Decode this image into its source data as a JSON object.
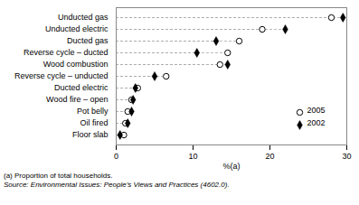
{
  "chart_data": {
    "type": "dot",
    "orientation": "horizontal",
    "categories": [
      "Floor slab",
      "Oil fired",
      "Pot belly",
      "Wood fire – open",
      "Ducted electric",
      "Reverse cycle – unducted",
      "Wood combustion",
      "Reverse cycle – ducted",
      "Ducted gas",
      "Unducted electric",
      "Unducted gas"
    ],
    "series": [
      {
        "name": "2002",
        "color": "#000000",
        "marker": "diamond",
        "values": [
          0.5,
          1.5,
          2.0,
          2.2,
          2.5,
          5.0,
          14.5,
          10.5,
          13.0,
          22.0,
          29.5
        ]
      },
      {
        "name": "2005",
        "color": "#000000",
        "marker": "open_circle",
        "values": [
          1.0,
          1.2,
          1.5,
          2.0,
          2.8,
          6.5,
          13.5,
          14.5,
          16.0,
          19.0,
          28.0
        ]
      }
    ],
    "xlabel": "%(a)",
    "xlim": [
      0,
      30
    ],
    "xticks": [
      0,
      10,
      20,
      30
    ],
    "grid": false,
    "legend": "lower right",
    "annotations": [
      "(a) Proportion of total households.",
      "Source: Environmental Issues: People’s Views and Practices (4602.0)."
    ]
  }
}
